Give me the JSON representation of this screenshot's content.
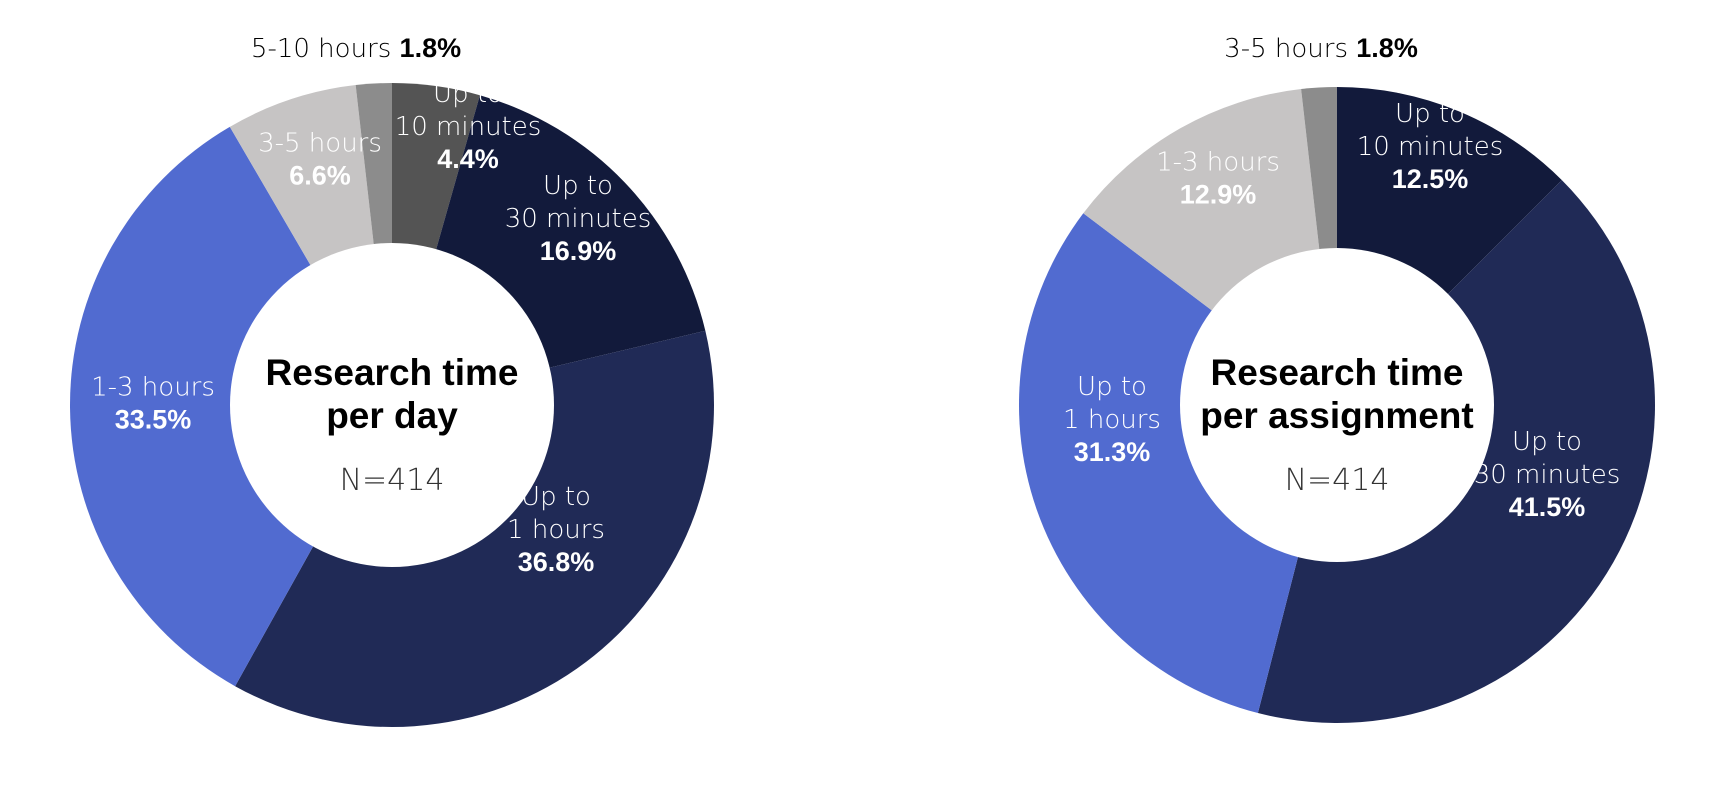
{
  "chart_data": [
    {
      "type": "pie",
      "title": "Research time per day",
      "title_lines": [
        "Research time",
        "per day"
      ],
      "n_label": "N=414",
      "categories": [
        "Up to 10 minutes",
        "Up to 30 minutes",
        "Up to 1 hours",
        "1-3 hours",
        "3-5 hours",
        "5-10 hours"
      ],
      "values": [
        4.4,
        16.9,
        36.8,
        33.5,
        6.6,
        1.8
      ],
      "colors": [
        "#545454",
        "#121a3b",
        "#202a56",
        "#516bd0",
        "#c6c4c4",
        "#8c8c8c"
      ],
      "label_colors": [
        "#ffffff",
        "#ffffff",
        "#ffffff",
        "#ffffff",
        "#ffffff",
        "#000000"
      ],
      "labels": [
        {
          "name_lines": [
            "Up to",
            "10 minutes"
          ],
          "pct": "4.4%",
          "outside": false
        },
        {
          "name_lines": [
            "Up to",
            "30 minutes"
          ],
          "pct": "16.9%",
          "outside": false
        },
        {
          "name_lines": [
            "Up to",
            "1 hours"
          ],
          "pct": "36.8%",
          "outside": false
        },
        {
          "name_lines": [
            "1-3 hours"
          ],
          "pct": "33.5%",
          "outside": false
        },
        {
          "name_lines": [
            "3-5 hours"
          ],
          "pct": "6.6%",
          "outside": false
        },
        {
          "name_lines": [
            "5-10 hours"
          ],
          "pct": "1.8%",
          "outside": true
        }
      ]
    },
    {
      "type": "pie",
      "title": "Research time per assignment",
      "title_lines": [
        "Research time",
        "per assignment"
      ],
      "n_label": "N=414",
      "categories": [
        "Up to 10 minutes",
        "Up to 30 minutes",
        "Up to 1 hours",
        "1-3 hours",
        "3-5 hours"
      ],
      "values": [
        12.5,
        41.5,
        31.3,
        12.9,
        1.8
      ],
      "colors": [
        "#121a3b",
        "#202a56",
        "#516bd0",
        "#c6c4c4",
        "#8c8c8c"
      ],
      "label_colors": [
        "#ffffff",
        "#ffffff",
        "#ffffff",
        "#ffffff",
        "#000000"
      ],
      "labels": [
        {
          "name_lines": [
            "Up to",
            "10 minutes"
          ],
          "pct": "12.5%",
          "outside": false
        },
        {
          "name_lines": [
            "Up to",
            "30 minutes"
          ],
          "pct": "41.5%",
          "outside": false
        },
        {
          "name_lines": [
            "Up to",
            "1 hours"
          ],
          "pct": "31.3%",
          "outside": false
        },
        {
          "name_lines": [
            "1-3 hours"
          ],
          "pct": "12.9%",
          "outside": false
        },
        {
          "name_lines": [
            "3-5 hours"
          ],
          "pct": "1.8%",
          "outside": true
        }
      ]
    }
  ]
}
